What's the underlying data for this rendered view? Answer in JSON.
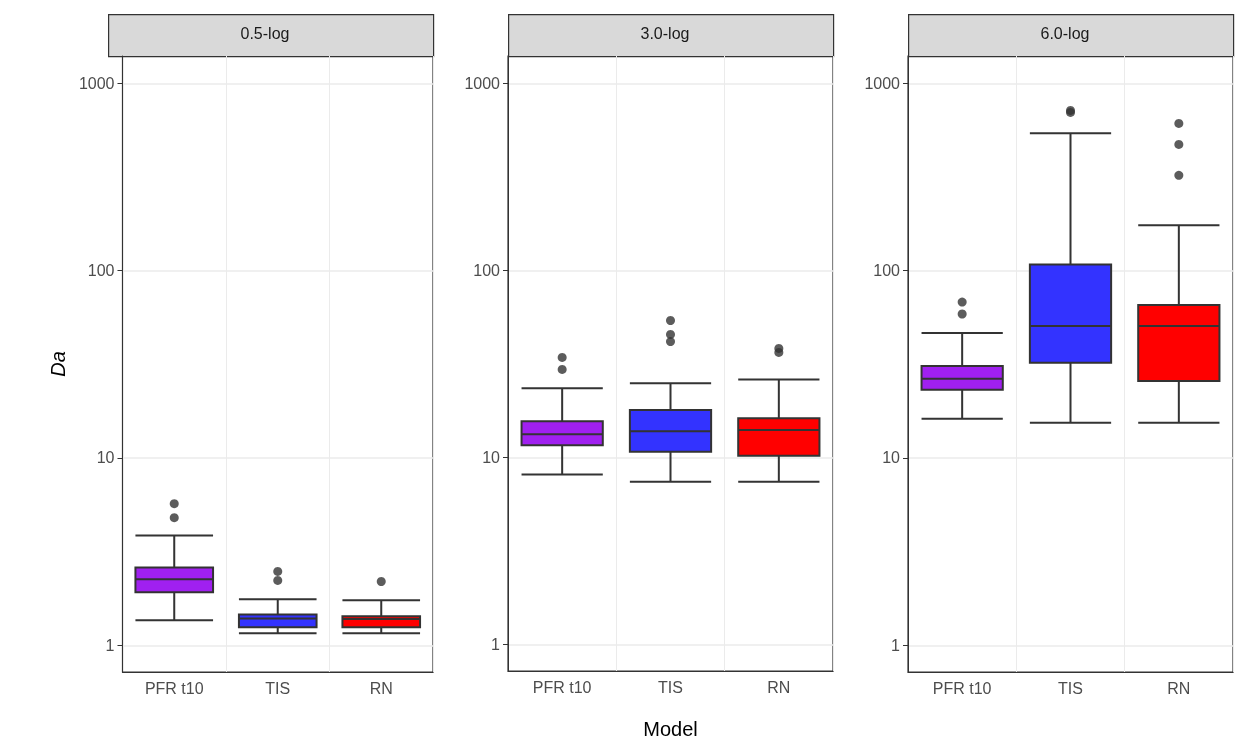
{
  "chart_data": [
    {
      "type": "box",
      "title": "0.5-log",
      "ylabel": "Da",
      "categories": [
        "PFR t10",
        "TIS",
        "RN"
      ],
      "colors": [
        "#a020f0",
        "#3333ff",
        "#ff0000"
      ],
      "log": true,
      "ylim": [
        0.72,
        1400
      ],
      "yticks": [
        1,
        10,
        100,
        1000
      ],
      "grid": true,
      "boxes": [
        {
          "low": 1.36,
          "q1": 1.92,
          "median": 2.25,
          "q3": 2.6,
          "high": 3.86,
          "outliers": [
            4.8,
            5.7
          ]
        },
        {
          "low": 1.16,
          "q1": 1.25,
          "median": 1.39,
          "q3": 1.46,
          "high": 1.76,
          "outliers": [
            2.22,
            2.48
          ]
        },
        {
          "low": 1.16,
          "q1": 1.25,
          "median": 1.38,
          "q3": 1.43,
          "high": 1.74,
          "outliers": [
            2.19
          ]
        }
      ]
    },
    {
      "type": "box",
      "title": "3.0-log",
      "xlabel": "Model",
      "categories": [
        "PFR t10",
        "TIS",
        "RN"
      ],
      "colors": [
        "#a020f0",
        "#3333ff",
        "#ff0000"
      ],
      "log": true,
      "ylim": [
        0.72,
        1400
      ],
      "yticks": [
        1,
        10,
        100,
        1000
      ],
      "grid": true,
      "boxes": [
        {
          "low": 8.1,
          "q1": 11.6,
          "median": 13.3,
          "q3": 15.6,
          "high": 23.4,
          "outliers": [
            29.5,
            34.2
          ]
        },
        {
          "low": 7.4,
          "q1": 10.7,
          "median": 13.8,
          "q3": 17.9,
          "high": 24.9,
          "outliers": [
            41.6,
            45.4,
            53.9
          ]
        },
        {
          "low": 7.4,
          "q1": 10.2,
          "median": 14.0,
          "q3": 16.2,
          "high": 26.1,
          "outliers": [
            36.4,
            38.2
          ]
        }
      ]
    },
    {
      "type": "box",
      "title": "6.0-log",
      "categories": [
        "PFR t10",
        "TIS",
        "RN"
      ],
      "colors": [
        "#a020f0",
        "#3333ff",
        "#ff0000"
      ],
      "log": true,
      "ylim": [
        0.72,
        1400
      ],
      "yticks": [
        1,
        10,
        100,
        1000
      ],
      "grid": true,
      "boxes": [
        {
          "low": 16.2,
          "q1": 23.1,
          "median": 26.5,
          "q3": 31,
          "high": 46.5,
          "outliers": [
            58.7,
            68
          ]
        },
        {
          "low": 15.4,
          "q1": 32.2,
          "median": 50.7,
          "q3": 108,
          "high": 541,
          "outliers": [
            700,
            717
          ]
        },
        {
          "low": 15.4,
          "q1": 25.8,
          "median": 50.7,
          "q3": 65.6,
          "high": 175,
          "outliers": [
            323,
            472,
            611
          ]
        }
      ]
    }
  ]
}
